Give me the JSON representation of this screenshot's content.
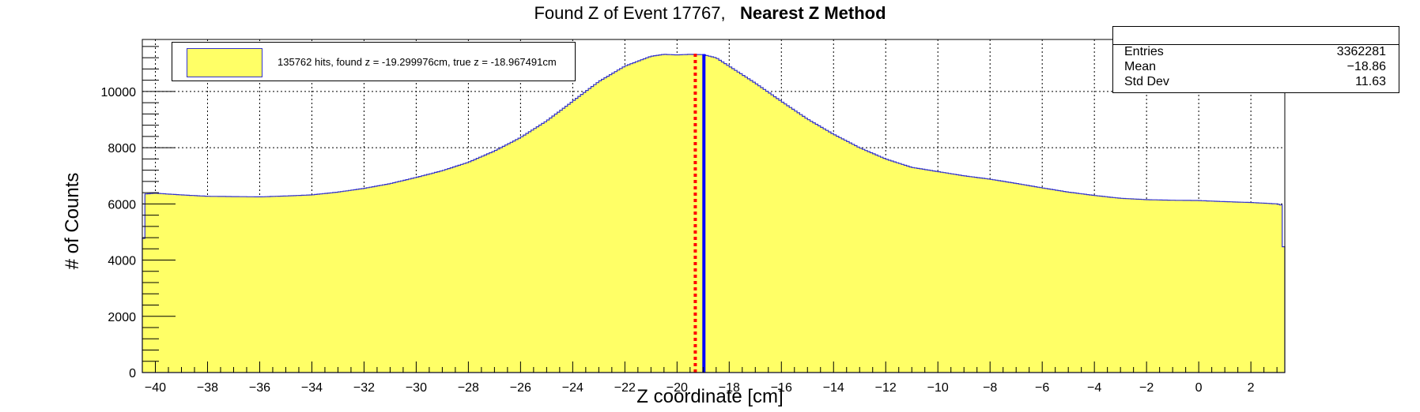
{
  "title": {
    "prefix": "Found Z of Event 17767,",
    "method": "Nearest Z Method"
  },
  "legend": {
    "entry": "135762 hits, found z = -19.299976cm, true z = -18.967491cm"
  },
  "stats": {
    "rows": [
      {
        "key": "Entries",
        "value": "3362281"
      },
      {
        "key": "Mean",
        "value": "−18.86"
      },
      {
        "key": "Std Dev",
        "value": "11.63"
      }
    ]
  },
  "axes": {
    "xlabel": "Z coordinate [cm]",
    "ylabel": "# of Counts"
  },
  "colors": {
    "fill": "#ffff66",
    "outline": "#3333cc",
    "found_line": "#ff0000",
    "true_line": "#0000ff",
    "grid": "#000000"
  },
  "chart_data": {
    "type": "area",
    "title": "Found Z of Event 17767,   Nearest Z Method",
    "xlabel": "Z coordinate [cm]",
    "ylabel": "# of Counts",
    "xlim": [
      -40.5,
      3.3
    ],
    "ylim": [
      0,
      11850
    ],
    "grid": true,
    "legend_position": "top-left",
    "xticks": [
      -40,
      -38,
      -36,
      -34,
      -32,
      -30,
      -28,
      -26,
      -24,
      -22,
      -20,
      -18,
      -16,
      -14,
      -12,
      -10,
      -8,
      -6,
      -4,
      -2,
      0,
      2
    ],
    "xtick_labels": [
      "−40",
      "−38",
      "−36",
      "−34",
      "−32",
      "−30",
      "−28",
      "−26",
      "−24",
      "−22",
      "−20",
      "−18",
      "−16",
      "−14",
      "−12",
      "−10",
      "−8",
      "−6",
      "−4",
      "−2",
      "0",
      "2"
    ],
    "yticks": [
      0,
      2000,
      4000,
      6000,
      8000,
      10000
    ],
    "ytick_labels": [
      "0",
      "2000",
      "4000",
      "6000",
      "8000",
      "10000"
    ],
    "series": [
      {
        "name": "135762 hits, found z = -19.299976cm, true z = -18.967491cm",
        "x": [
          -40.5,
          -40.4,
          -40,
          -39,
          -38,
          -37,
          -36,
          -35,
          -34,
          -33,
          -32,
          -31,
          -30,
          -29,
          -28,
          -27,
          -26,
          -25,
          -24,
          -23,
          -22,
          -21,
          -20.5,
          -20,
          -19.5,
          -19,
          -18.5,
          -18,
          -17,
          -16,
          -15,
          -14,
          -13,
          -12,
          -11,
          -10,
          -9,
          -8,
          -7,
          -6,
          -5,
          -4,
          -3,
          -2,
          -1,
          0,
          1,
          2,
          3,
          3.2,
          3.3
        ],
        "y": [
          3200,
          6350,
          6380,
          6320,
          6270,
          6260,
          6250,
          6280,
          6320,
          6420,
          6550,
          6720,
          6940,
          7180,
          7480,
          7880,
          8360,
          8950,
          9650,
          10350,
          10900,
          11250,
          11320,
          11300,
          11320,
          11310,
          11200,
          10900,
          10300,
          9650,
          9020,
          8480,
          8000,
          7600,
          7300,
          7150,
          7000,
          6880,
          6730,
          6570,
          6420,
          6300,
          6200,
          6150,
          6130,
          6120,
          6080,
          6050,
          6000,
          5950,
          3000
        ]
      }
    ],
    "markers": [
      {
        "label": "found z",
        "x": -19.3,
        "style": "dotted",
        "color": "#ff0000"
      },
      {
        "label": "true z",
        "x": -18.97,
        "style": "solid",
        "color": "#0000ff"
      }
    ]
  }
}
